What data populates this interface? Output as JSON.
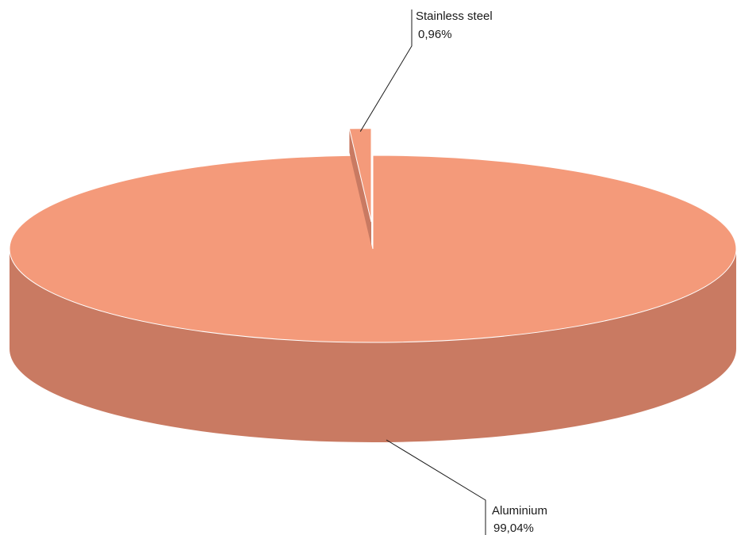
{
  "chart_data": {
    "type": "pie",
    "style": "3d-exploded",
    "title": "",
    "slices": [
      {
        "name": "Stainless steel",
        "value": 0.96,
        "label_value": "0,96%",
        "color": "#f49a7a",
        "side_color": "#c97a62"
      },
      {
        "name": "Aluminium",
        "value": 99.04,
        "label_value": "99,04%",
        "color": "#f49a7a",
        "side_color": "#c97a62"
      }
    ],
    "legend": "none"
  }
}
